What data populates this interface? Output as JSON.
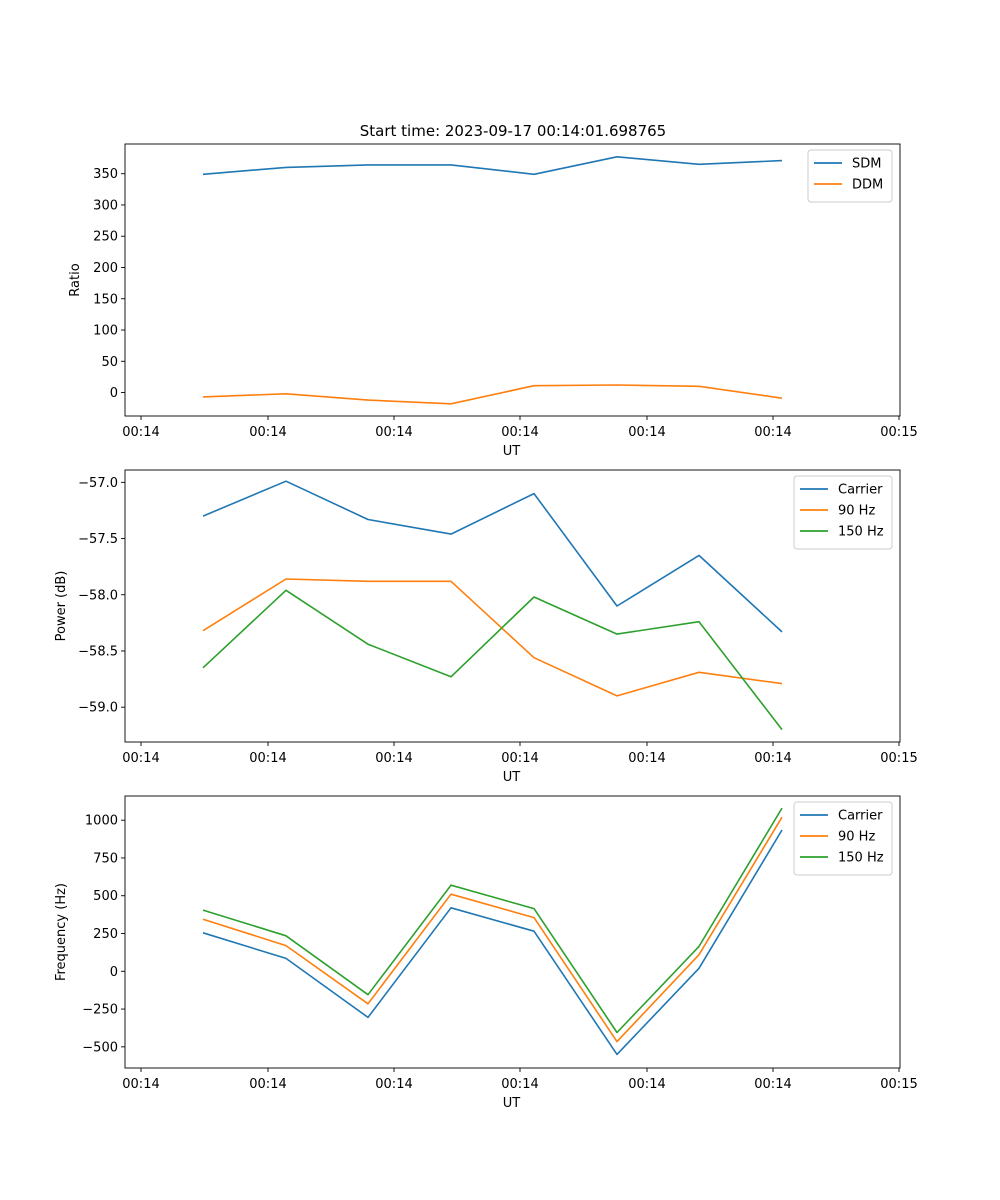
{
  "figure_title": "Start time: 2023-09-17 00:14:01.698765",
  "chart_data": [
    {
      "type": "line",
      "title": "Start time: 2023-09-17 00:14:01.698765",
      "xlabel": "UT",
      "ylabel": "Ratio",
      "x_tick_labels": [
        "00:14",
        "00:14",
        "00:14",
        "00:14",
        "00:14",
        "00:14",
        "00:15"
      ],
      "ylim": [
        -37.5,
        397.5
      ],
      "yticks": [
        0,
        50,
        100,
        150,
        200,
        250,
        300,
        350
      ],
      "yticks_labels": [
        "0",
        "50",
        "100",
        "150",
        "200",
        "250",
        "300",
        "350"
      ],
      "legend_position": "top-right",
      "series": [
        {
          "name": "SDM",
          "color": "#1f77b4",
          "values": [
            349,
            360,
            364,
            364,
            349,
            377,
            365,
            371
          ]
        },
        {
          "name": "DDM",
          "color": "#ff7f0e",
          "values": [
            -7,
            -2,
            -12,
            -18,
            11,
            12,
            10,
            -9
          ]
        }
      ]
    },
    {
      "type": "line",
      "title": "",
      "xlabel": "UT",
      "ylabel": "Power (dB)",
      "x_tick_labels": [
        "00:14",
        "00:14",
        "00:14",
        "00:14",
        "00:14",
        "00:14",
        "00:15"
      ],
      "ylim": [
        -59.31,
        -56.89
      ],
      "yticks": [
        -59.0,
        -58.5,
        -58.0,
        -57.5,
        -57.0
      ],
      "yticks_labels": [
        "−59.0",
        "−58.5",
        "−58.0",
        "−57.5",
        "−57.0"
      ],
      "legend_position": "top-right",
      "series": [
        {
          "name": "Carrier",
          "color": "#1f77b4",
          "values": [
            -57.3,
            -56.99,
            -57.33,
            -57.46,
            -57.1,
            -58.1,
            -57.65,
            -58.33
          ]
        },
        {
          "name": "90 Hz",
          "color": "#ff7f0e",
          "values": [
            -58.32,
            -57.86,
            -57.88,
            -57.88,
            -58.56,
            -58.9,
            -58.69,
            -58.79
          ]
        },
        {
          "name": "150 Hz",
          "color": "#2ca02c",
          "values": [
            -58.65,
            -57.96,
            -58.44,
            -58.73,
            -58.02,
            -58.35,
            -58.24,
            -59.2
          ]
        }
      ]
    },
    {
      "type": "line",
      "title": "",
      "xlabel": "UT",
      "ylabel": "Frequency (Hz)",
      "x_tick_labels": [
        "00:14",
        "00:14",
        "00:14",
        "00:14",
        "00:14",
        "00:14",
        "00:15"
      ],
      "ylim": [
        -640,
        1160
      ],
      "yticks": [
        -500,
        -250,
        0,
        250,
        500,
        750,
        1000
      ],
      "yticks_labels": [
        "−500",
        "−250",
        "0",
        "250",
        "500",
        "750",
        "1000"
      ],
      "legend_position": "top-right",
      "series": [
        {
          "name": "Carrier",
          "color": "#1f77b4",
          "values": [
            255,
            85,
            -305,
            420,
            265,
            -550,
            20,
            935
          ]
        },
        {
          "name": "90 Hz",
          "color": "#ff7f0e",
          "values": [
            345,
            170,
            -215,
            510,
            355,
            -465,
            110,
            1020
          ]
        },
        {
          "name": "150 Hz",
          "color": "#2ca02c",
          "values": [
            405,
            235,
            -155,
            570,
            415,
            -405,
            165,
            1080
          ]
        }
      ]
    }
  ]
}
